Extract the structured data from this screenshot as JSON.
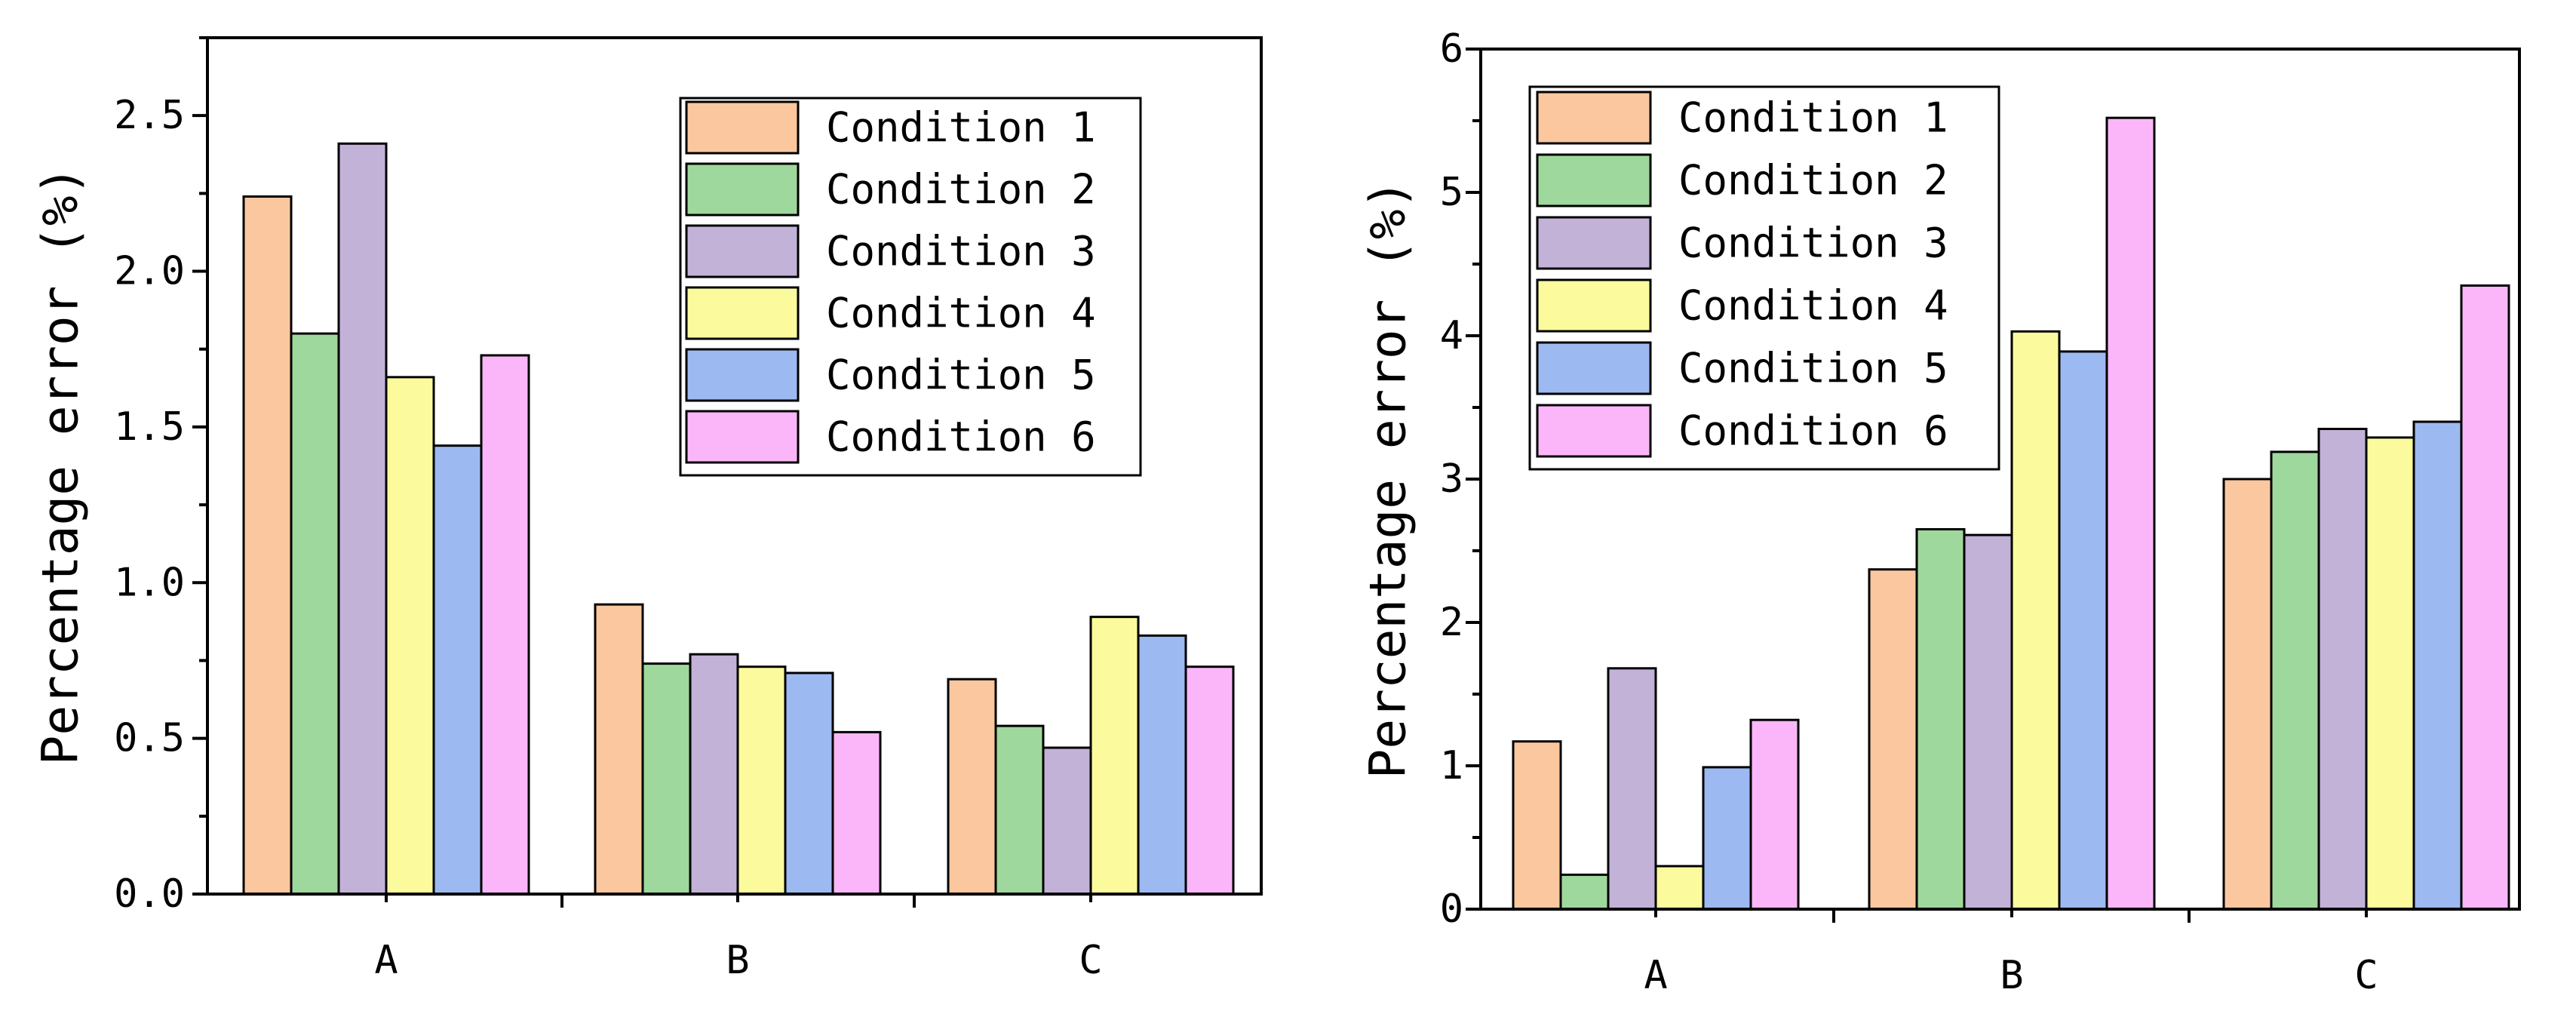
{
  "colors": {
    "Condition 1": "#FBC79E",
    "Condition 2": "#9FD89C",
    "Condition 3": "#C2B2D8",
    "Condition 4": "#FBFB9E",
    "Condition 5": "#9DB9F1",
    "Condition 6": "#FBB6F9"
  },
  "chart_data": [
    {
      "type": "bar",
      "title": "",
      "xlabel": "",
      "ylabel": "Percentage error (%)",
      "categories": [
        "A",
        "B",
        "C"
      ],
      "ylim": [
        0,
        2.75
      ],
      "yticks": [
        0,
        0.5,
        1.0,
        1.5,
        2.0,
        2.5
      ],
      "ytick_labels": [
        "0.0",
        "0.5",
        "1.0",
        "1.5",
        "2.0",
        "2.5"
      ],
      "legend_position": "top-right",
      "grid": false,
      "series": [
        {
          "name": "Condition 1",
          "values": [
            2.24,
            0.93,
            0.69
          ]
        },
        {
          "name": "Condition 2",
          "values": [
            1.8,
            0.74,
            0.54
          ]
        },
        {
          "name": "Condition 3",
          "values": [
            2.41,
            0.77,
            0.47
          ]
        },
        {
          "name": "Condition 4",
          "values": [
            1.66,
            0.73,
            0.89
          ]
        },
        {
          "name": "Condition 5",
          "values": [
            1.44,
            0.71,
            0.83
          ]
        },
        {
          "name": "Condition 6",
          "values": [
            1.73,
            0.52,
            0.73
          ]
        }
      ]
    },
    {
      "type": "bar",
      "title": "",
      "xlabel": "",
      "ylabel": "Percentage error (%)",
      "categories": [
        "A",
        "B",
        "C"
      ],
      "ylim": [
        0,
        6
      ],
      "yticks": [
        0,
        1,
        2,
        3,
        4,
        5,
        6
      ],
      "ytick_labels": [
        "0",
        "1",
        "2",
        "3",
        "4",
        "5",
        "6"
      ],
      "legend_position": "top-left",
      "grid": false,
      "series": [
        {
          "name": "Condition 1",
          "values": [
            1.17,
            2.37,
            3.0
          ]
        },
        {
          "name": "Condition 2",
          "values": [
            0.24,
            2.65,
            3.19
          ]
        },
        {
          "name": "Condition 3",
          "values": [
            1.68,
            2.61,
            3.35
          ]
        },
        {
          "name": "Condition 4",
          "values": [
            0.3,
            4.03,
            3.29
          ]
        },
        {
          "name": "Condition 5",
          "values": [
            0.99,
            3.89,
            3.4
          ]
        },
        {
          "name": "Condition 6",
          "values": [
            1.32,
            5.52,
            4.35
          ]
        }
      ]
    }
  ]
}
